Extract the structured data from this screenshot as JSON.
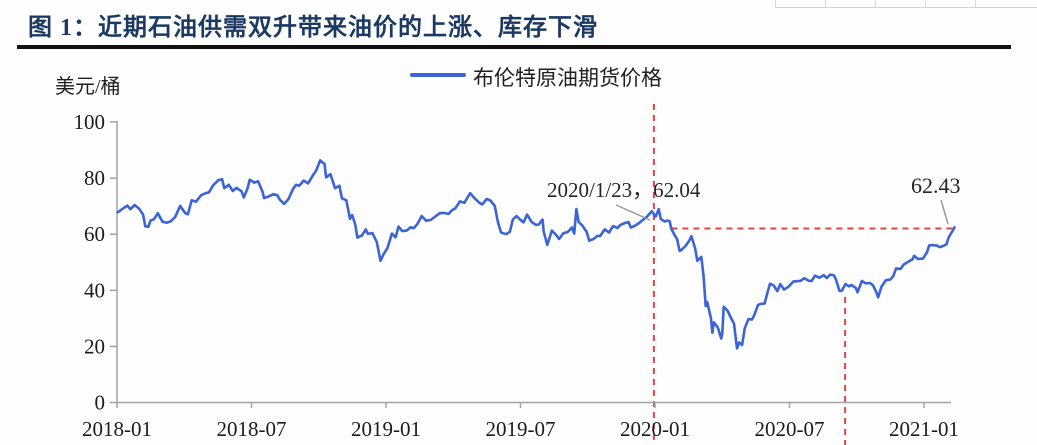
{
  "figure": {
    "title": "图 1：近期石油供需双升带来油价的上涨、库存下滑",
    "unit_label": "美元/桶",
    "legend": [
      {
        "label": "布伦特原油期货价格",
        "color": "#3b64d8"
      }
    ]
  },
  "colors": {
    "series_blue": "#3b64d8",
    "dashed_red": "#e04545",
    "title_navy": "#1c3964",
    "axis_gray": "#a3a3a3"
  },
  "chart_data": {
    "type": "line",
    "title": "图 1：近期石油供需双升带来油价的上涨、库存下滑",
    "xlabel": "",
    "ylabel": "美元/桶",
    "ylim": [
      0,
      100
    ],
    "yticks": [
      0,
      20,
      40,
      60,
      80,
      100
    ],
    "xticks": [
      "2018-01",
      "2018-07",
      "2019-01",
      "2019-07",
      "2020-01",
      "2020-07",
      "2021-01"
    ],
    "grid": false,
    "legend_position": "top-center",
    "series": [
      {
        "name": "布伦特原油期货价格",
        "color": "#3b64d8",
        "points": [
          [
            "2018-01-02",
            67.8
          ],
          [
            "2018-01-10",
            69.3
          ],
          [
            "2018-01-15",
            70.2
          ],
          [
            "2018-01-19",
            68.9
          ],
          [
            "2018-01-25",
            70.4
          ],
          [
            "2018-01-31",
            69.1
          ],
          [
            "2018-02-06",
            67.0
          ],
          [
            "2018-02-09",
            62.8
          ],
          [
            "2018-02-13",
            62.6
          ],
          [
            "2018-02-16",
            64.8
          ],
          [
            "2018-02-21",
            65.4
          ],
          [
            "2018-02-26",
            67.5
          ],
          [
            "2018-03-02",
            64.4
          ],
          [
            "2018-03-08",
            64.1
          ],
          [
            "2018-03-13",
            64.6
          ],
          [
            "2018-03-19",
            66.1
          ],
          [
            "2018-03-26",
            70.1
          ],
          [
            "2018-04-02",
            67.6
          ],
          [
            "2018-04-06",
            67.1
          ],
          [
            "2018-04-11",
            72.1
          ],
          [
            "2018-04-17",
            71.6
          ],
          [
            "2018-04-24",
            73.9
          ],
          [
            "2018-04-30",
            74.6
          ],
          [
            "2018-05-04",
            74.9
          ],
          [
            "2018-05-10",
            77.5
          ],
          [
            "2018-05-17",
            79.3
          ],
          [
            "2018-05-22",
            79.6
          ],
          [
            "2018-05-25",
            76.4
          ],
          [
            "2018-05-31",
            77.6
          ],
          [
            "2018-06-06",
            75.4
          ],
          [
            "2018-06-11",
            76.5
          ],
          [
            "2018-06-18",
            75.3
          ],
          [
            "2018-06-21",
            73.1
          ],
          [
            "2018-06-26",
            76.3
          ],
          [
            "2018-06-29",
            79.4
          ],
          [
            "2018-07-05",
            78.4
          ],
          [
            "2018-07-10",
            78.9
          ],
          [
            "2018-07-16",
            75.2
          ],
          [
            "2018-07-18",
            72.9
          ],
          [
            "2018-07-24",
            73.4
          ],
          [
            "2018-07-31",
            74.3
          ],
          [
            "2018-08-06",
            73.8
          ],
          [
            "2018-08-09",
            72.3
          ],
          [
            "2018-08-15",
            70.8
          ],
          [
            "2018-08-21",
            72.6
          ],
          [
            "2018-08-27",
            76.2
          ],
          [
            "2018-08-31",
            77.6
          ],
          [
            "2018-09-05",
            77.3
          ],
          [
            "2018-09-11",
            79.1
          ],
          [
            "2018-09-17",
            78.1
          ],
          [
            "2018-09-24",
            81.2
          ],
          [
            "2018-09-28",
            82.7
          ],
          [
            "2018-10-03",
            86.3
          ],
          [
            "2018-10-09",
            85.0
          ],
          [
            "2018-10-11",
            80.3
          ],
          [
            "2018-10-17",
            81.4
          ],
          [
            "2018-10-23",
            76.4
          ],
          [
            "2018-10-29",
            77.3
          ],
          [
            "2018-11-02",
            72.8
          ],
          [
            "2018-11-08",
            72.1
          ],
          [
            "2018-11-13",
            65.5
          ],
          [
            "2018-11-16",
            66.8
          ],
          [
            "2018-11-20",
            63.5
          ],
          [
            "2018-11-23",
            58.8
          ],
          [
            "2018-11-29",
            59.5
          ],
          [
            "2018-12-04",
            61.7
          ],
          [
            "2018-12-07",
            60.1
          ],
          [
            "2018-12-13",
            60.4
          ],
          [
            "2018-12-19",
            57.2
          ],
          [
            "2018-12-24",
            50.5
          ],
          [
            "2018-12-28",
            52.8
          ],
          [
            "2019-01-03",
            55.1
          ],
          [
            "2019-01-09",
            60.2
          ],
          [
            "2019-01-14",
            58.9
          ],
          [
            "2019-01-18",
            62.7
          ],
          [
            "2019-01-23",
            61.1
          ],
          [
            "2019-01-29",
            61.3
          ],
          [
            "2019-02-04",
            62.5
          ],
          [
            "2019-02-08",
            62.1
          ],
          [
            "2019-02-13",
            63.6
          ],
          [
            "2019-02-19",
            66.5
          ],
          [
            "2019-02-25",
            64.8
          ],
          [
            "2019-03-01",
            65.1
          ],
          [
            "2019-03-07",
            66.3
          ],
          [
            "2019-03-13",
            67.5
          ],
          [
            "2019-03-19",
            67.6
          ],
          [
            "2019-03-25",
            67.2
          ],
          [
            "2019-03-29",
            68.4
          ],
          [
            "2019-04-04",
            69.3
          ],
          [
            "2019-04-10",
            71.7
          ],
          [
            "2019-04-16",
            71.2
          ],
          [
            "2019-04-24",
            74.6
          ],
          [
            "2019-04-30",
            72.8
          ],
          [
            "2019-05-06",
            71.2
          ],
          [
            "2019-05-10",
            70.6
          ],
          [
            "2019-05-16",
            72.6
          ],
          [
            "2019-05-21",
            72.0
          ],
          [
            "2019-05-27",
            70.1
          ],
          [
            "2019-05-31",
            64.5
          ],
          [
            "2019-06-05",
            60.6
          ],
          [
            "2019-06-12",
            60.0
          ],
          [
            "2019-06-17",
            60.9
          ],
          [
            "2019-06-21",
            65.2
          ],
          [
            "2019-06-26",
            66.5
          ],
          [
            "2019-07-01",
            65.1
          ],
          [
            "2019-07-05",
            64.2
          ],
          [
            "2019-07-10",
            67.0
          ],
          [
            "2019-07-16",
            64.4
          ],
          [
            "2019-07-22",
            63.3
          ],
          [
            "2019-07-26",
            63.5
          ],
          [
            "2019-07-31",
            65.2
          ],
          [
            "2019-08-02",
            60.9
          ],
          [
            "2019-08-07",
            56.2
          ],
          [
            "2019-08-13",
            61.3
          ],
          [
            "2019-08-19",
            59.7
          ],
          [
            "2019-08-23",
            58.3
          ],
          [
            "2019-08-29",
            60.4
          ],
          [
            "2019-09-04",
            60.7
          ],
          [
            "2019-09-10",
            62.4
          ],
          [
            "2019-09-13",
            60.2
          ],
          [
            "2019-09-16",
            69.0
          ],
          [
            "2019-09-19",
            64.4
          ],
          [
            "2019-09-24",
            63.1
          ],
          [
            "2019-09-30",
            60.8
          ],
          [
            "2019-10-03",
            57.7
          ],
          [
            "2019-10-09",
            58.3
          ],
          [
            "2019-10-14",
            59.4
          ],
          [
            "2019-10-18",
            59.4
          ],
          [
            "2019-10-24",
            61.7
          ],
          [
            "2019-10-30",
            60.6
          ],
          [
            "2019-11-05",
            62.9
          ],
          [
            "2019-11-11",
            62.2
          ],
          [
            "2019-11-15",
            63.3
          ],
          [
            "2019-11-21",
            64.0
          ],
          [
            "2019-11-26",
            64.3
          ],
          [
            "2019-11-29",
            62.4
          ],
          [
            "2019-12-04",
            63.0
          ],
          [
            "2019-12-10",
            64.0
          ],
          [
            "2019-12-16",
            65.3
          ],
          [
            "2019-12-20",
            66.1
          ],
          [
            "2019-12-27",
            68.2
          ],
          [
            "2020-01-02",
            66.3
          ],
          [
            "2020-01-06",
            68.9
          ],
          [
            "2020-01-09",
            65.4
          ],
          [
            "2020-01-14",
            64.5
          ],
          [
            "2020-01-17",
            64.9
          ],
          [
            "2020-01-21",
            64.6
          ],
          [
            "2020-01-23",
            62.04
          ],
          [
            "2020-01-28",
            59.5
          ],
          [
            "2020-01-31",
            58.2
          ],
          [
            "2020-02-04",
            54.0
          ],
          [
            "2020-02-07",
            54.5
          ],
          [
            "2020-02-12",
            55.8
          ],
          [
            "2020-02-17",
            57.7
          ],
          [
            "2020-02-20",
            59.3
          ],
          [
            "2020-02-25",
            55.0
          ],
          [
            "2020-02-28",
            50.5
          ],
          [
            "2020-03-03",
            51.9
          ],
          [
            "2020-03-06",
            45.3
          ],
          [
            "2020-03-09",
            34.4
          ],
          [
            "2020-03-11",
            35.8
          ],
          [
            "2020-03-16",
            30.1
          ],
          [
            "2020-03-18",
            24.9
          ],
          [
            "2020-03-20",
            28.6
          ],
          [
            "2020-03-24",
            27.2
          ],
          [
            "2020-03-26",
            26.3
          ],
          [
            "2020-03-30",
            22.8
          ],
          [
            "2020-04-01",
            24.7
          ],
          [
            "2020-04-03",
            34.1
          ],
          [
            "2020-04-08",
            32.8
          ],
          [
            "2020-04-14",
            29.6
          ],
          [
            "2020-04-17",
            28.1
          ],
          [
            "2020-04-21",
            19.3
          ],
          [
            "2020-04-24",
            21.4
          ],
          [
            "2020-04-28",
            20.5
          ],
          [
            "2020-05-01",
            26.4
          ],
          [
            "2020-05-06",
            29.7
          ],
          [
            "2020-05-11",
            29.6
          ],
          [
            "2020-05-14",
            31.1
          ],
          [
            "2020-05-19",
            34.7
          ],
          [
            "2020-05-22",
            35.1
          ],
          [
            "2020-05-28",
            35.3
          ],
          [
            "2020-06-02",
            39.6
          ],
          [
            "2020-06-05",
            42.3
          ],
          [
            "2020-06-10",
            41.7
          ],
          [
            "2020-06-15",
            39.7
          ],
          [
            "2020-06-19",
            42.2
          ],
          [
            "2020-06-24",
            40.3
          ],
          [
            "2020-06-30",
            41.2
          ],
          [
            "2020-07-06",
            43.1
          ],
          [
            "2020-07-10",
            43.2
          ],
          [
            "2020-07-16",
            43.4
          ],
          [
            "2020-07-21",
            44.3
          ],
          [
            "2020-07-27",
            43.4
          ],
          [
            "2020-07-31",
            43.3
          ],
          [
            "2020-08-05",
            45.2
          ],
          [
            "2020-08-11",
            44.5
          ],
          [
            "2020-08-17",
            45.4
          ],
          [
            "2020-08-21",
            44.4
          ],
          [
            "2020-08-26",
            45.6
          ],
          [
            "2020-08-31",
            45.3
          ],
          [
            "2020-09-03",
            44.0
          ],
          [
            "2020-09-08",
            39.8
          ],
          [
            "2020-09-11",
            39.8
          ],
          [
            "2020-09-16",
            42.2
          ],
          [
            "2020-09-21",
            41.4
          ],
          [
            "2020-09-24",
            41.9
          ],
          [
            "2020-09-30",
            40.9
          ],
          [
            "2020-10-02",
            39.3
          ],
          [
            "2020-10-08",
            43.3
          ],
          [
            "2020-10-13",
            42.5
          ],
          [
            "2020-10-19",
            42.6
          ],
          [
            "2020-10-23",
            41.8
          ],
          [
            "2020-10-28",
            39.1
          ],
          [
            "2020-10-30",
            37.5
          ],
          [
            "2020-11-04",
            41.2
          ],
          [
            "2020-11-10",
            43.6
          ],
          [
            "2020-11-16",
            43.8
          ],
          [
            "2020-11-20",
            45.0
          ],
          [
            "2020-11-24",
            47.8
          ],
          [
            "2020-11-30",
            47.6
          ],
          [
            "2020-12-04",
            49.2
          ],
          [
            "2020-12-10",
            50.2
          ],
          [
            "2020-12-16",
            51.1
          ],
          [
            "2020-12-18",
            52.3
          ],
          [
            "2020-12-23",
            51.2
          ],
          [
            "2020-12-30",
            51.3
          ],
          [
            "2021-01-05",
            53.6
          ],
          [
            "2021-01-08",
            56.0
          ],
          [
            "2021-01-13",
            56.1
          ],
          [
            "2021-01-19",
            55.9
          ],
          [
            "2021-01-22",
            55.4
          ],
          [
            "2021-01-27",
            55.8
          ],
          [
            "2021-02-01",
            56.4
          ],
          [
            "2021-02-04",
            58.8
          ],
          [
            "2021-02-08",
            60.6
          ],
          [
            "2021-02-10",
            61.5
          ],
          [
            "2021-02-12",
            62.43
          ]
        ]
      }
    ],
    "annotations": {
      "callout_peak": {
        "text": "2020/1/23，62.04",
        "date": "2020-01-23",
        "value": 62.04
      },
      "callout_end": {
        "text": "62.43",
        "value": 62.43
      },
      "vlines_x_months": [
        23.95,
        32.48
      ],
      "hline": {
        "value": 62.04,
        "from_month": 24.73,
        "to_month": 37.36
      }
    }
  }
}
